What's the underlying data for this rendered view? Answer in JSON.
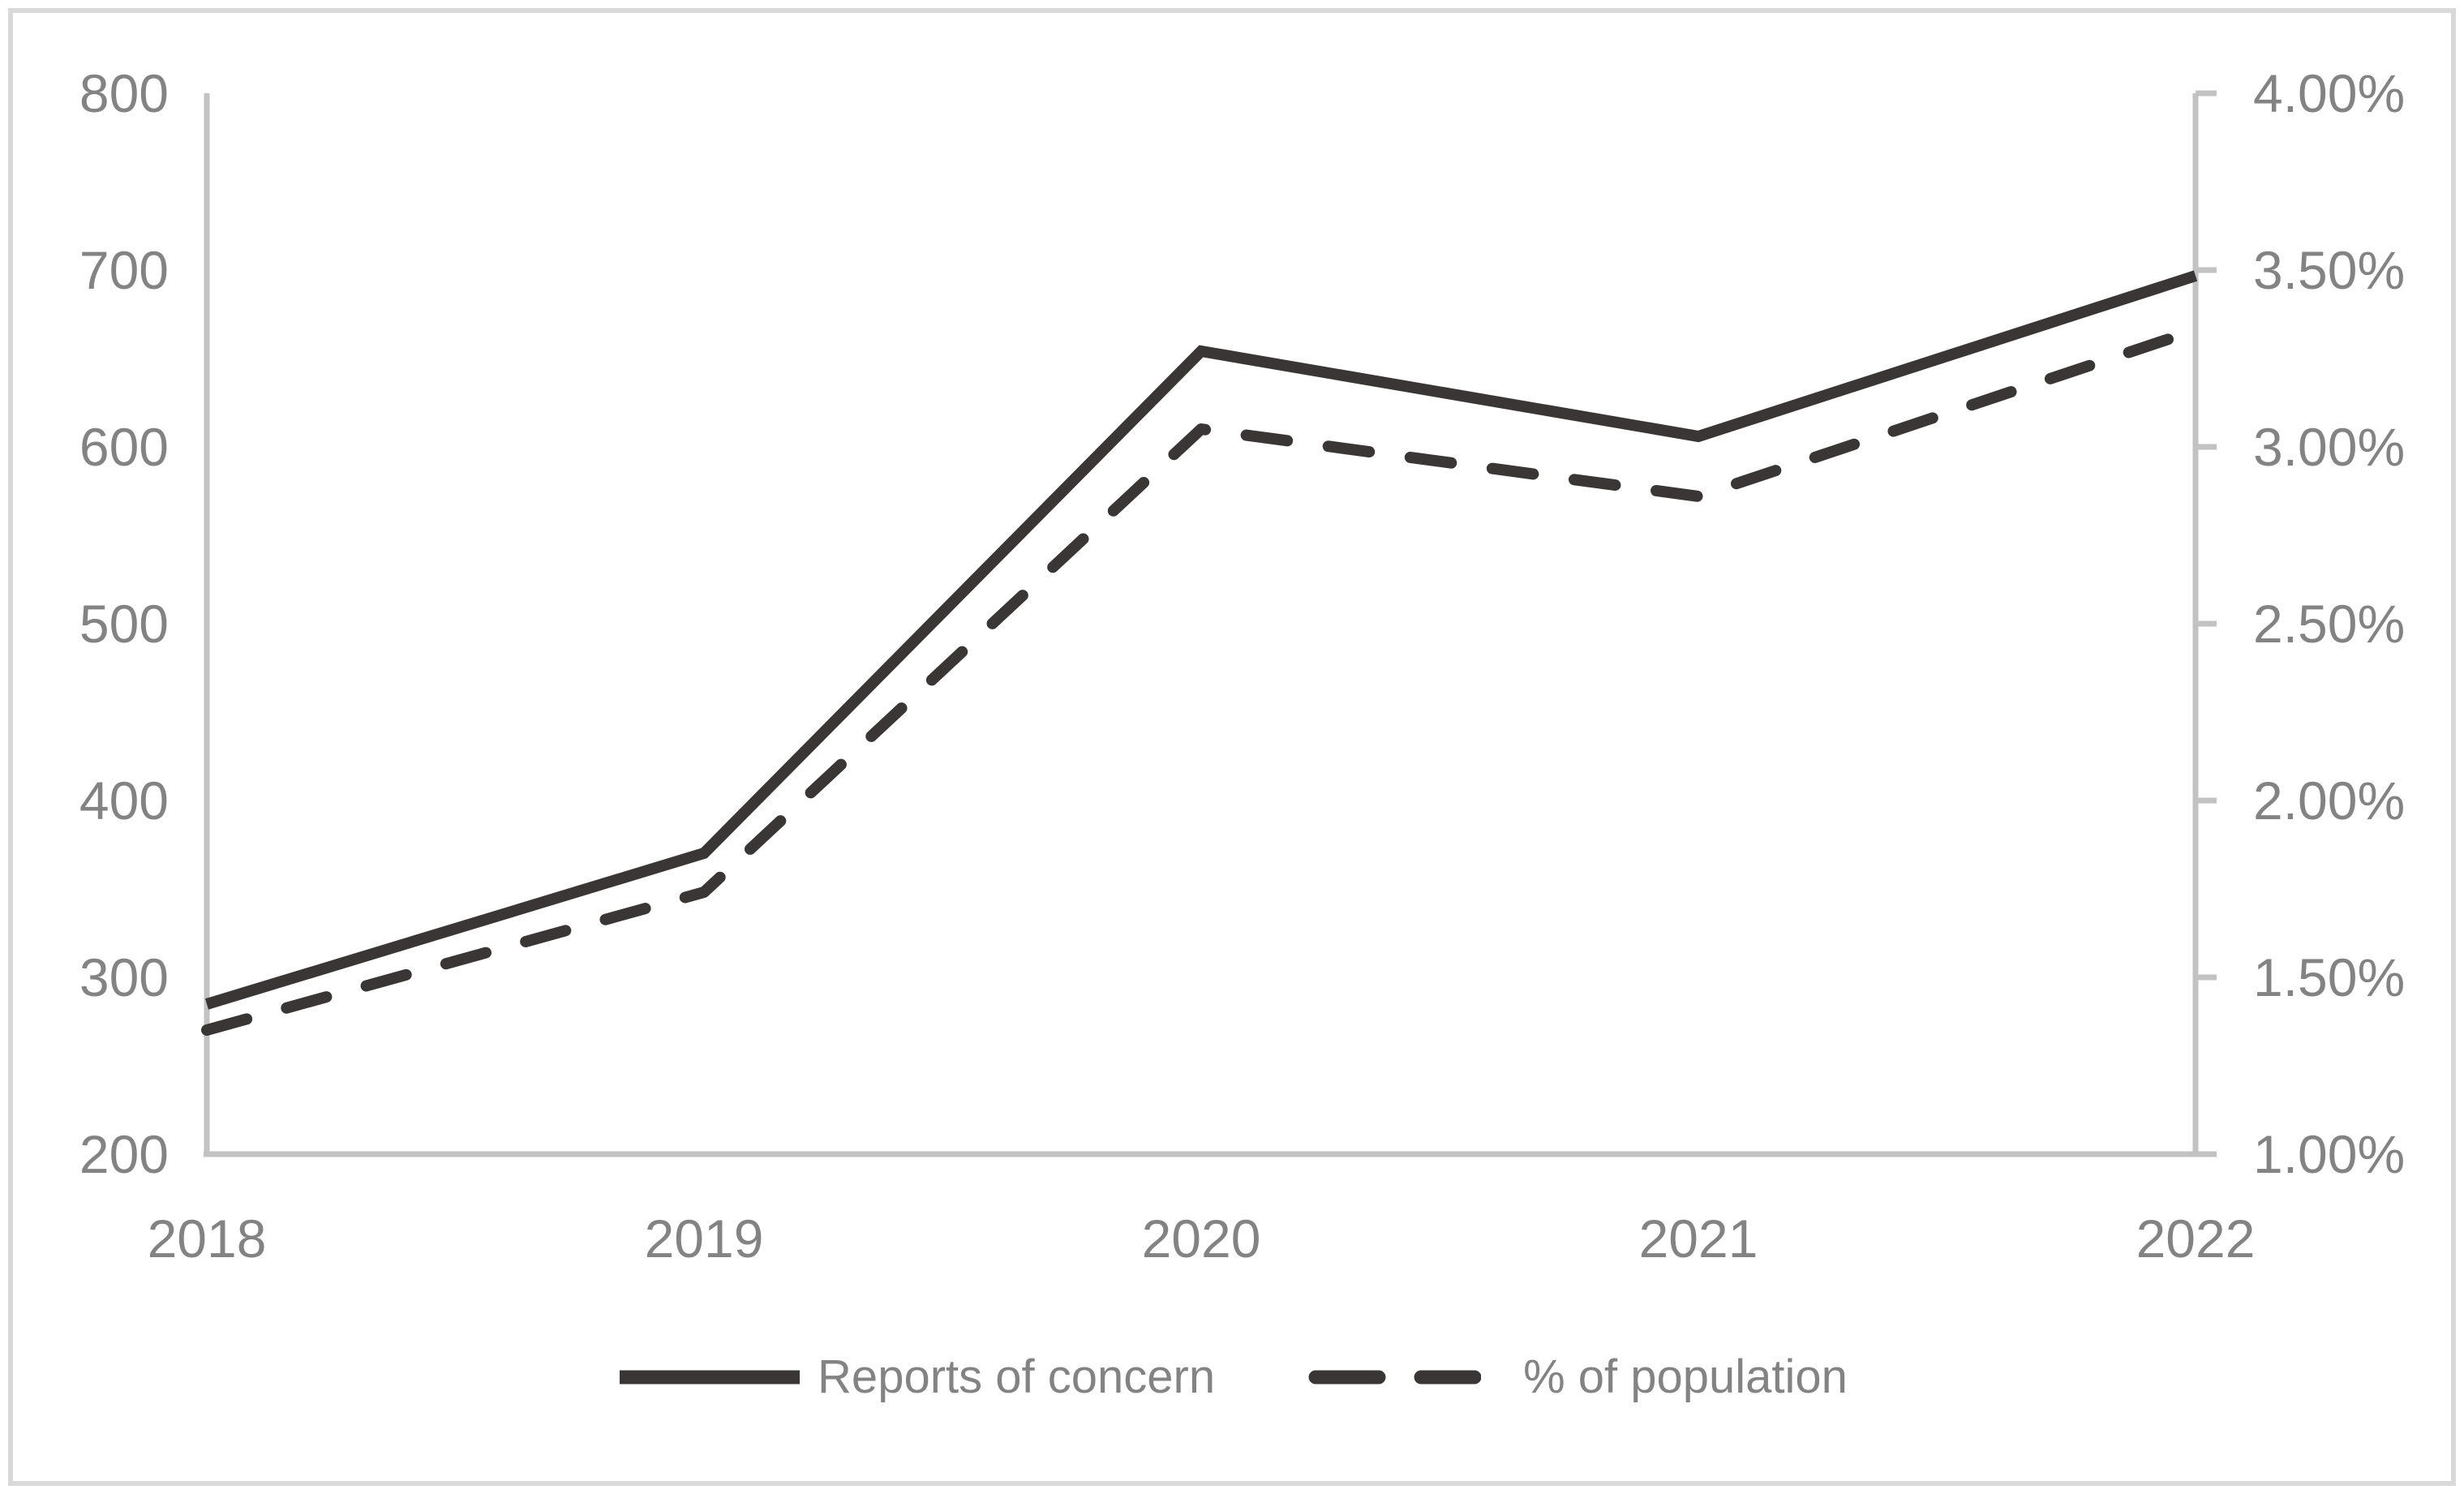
{
  "chart_data": {
    "type": "line",
    "categories": [
      "2018",
      "2019",
      "2020",
      "2021",
      "2022"
    ],
    "series": [
      {
        "name": "Reports of concern",
        "axis": "left",
        "style": "solid",
        "values": [
          285,
          370,
          654,
          606,
          697
        ]
      },
      {
        "name": "% of population",
        "axis": "right",
        "style": "dashed",
        "unit": "%",
        "values": [
          1.35,
          1.74,
          3.05,
          2.86,
          3.33
        ]
      }
    ],
    "left_axis": {
      "min": 200,
      "max": 800,
      "step": 100,
      "tick_labels": [
        "800",
        "700",
        "600",
        "500",
        "400",
        "300",
        "200"
      ],
      "tick_values": [
        800,
        700,
        600,
        500,
        400,
        300,
        200
      ]
    },
    "right_axis": {
      "min": 1.0,
      "max": 4.0,
      "step": 0.5,
      "tick_labels": [
        "4.00%",
        "3.50%",
        "3.00%",
        "2.50%",
        "2.00%",
        "1.50%",
        "1.00%"
      ],
      "tick_values": [
        4.0,
        3.5,
        3.0,
        2.5,
        2.0,
        1.5,
        1.0
      ]
    },
    "legend": {
      "position": "bottom-center",
      "entries": [
        "Reports of concern",
        "% of population"
      ]
    },
    "title": "",
    "grid": false
  },
  "colors": {
    "line": "#3a3636",
    "axis": "#c2c2c2",
    "labels": "#838383",
    "border": "#d9d9d9",
    "background": "#ffffff"
  }
}
